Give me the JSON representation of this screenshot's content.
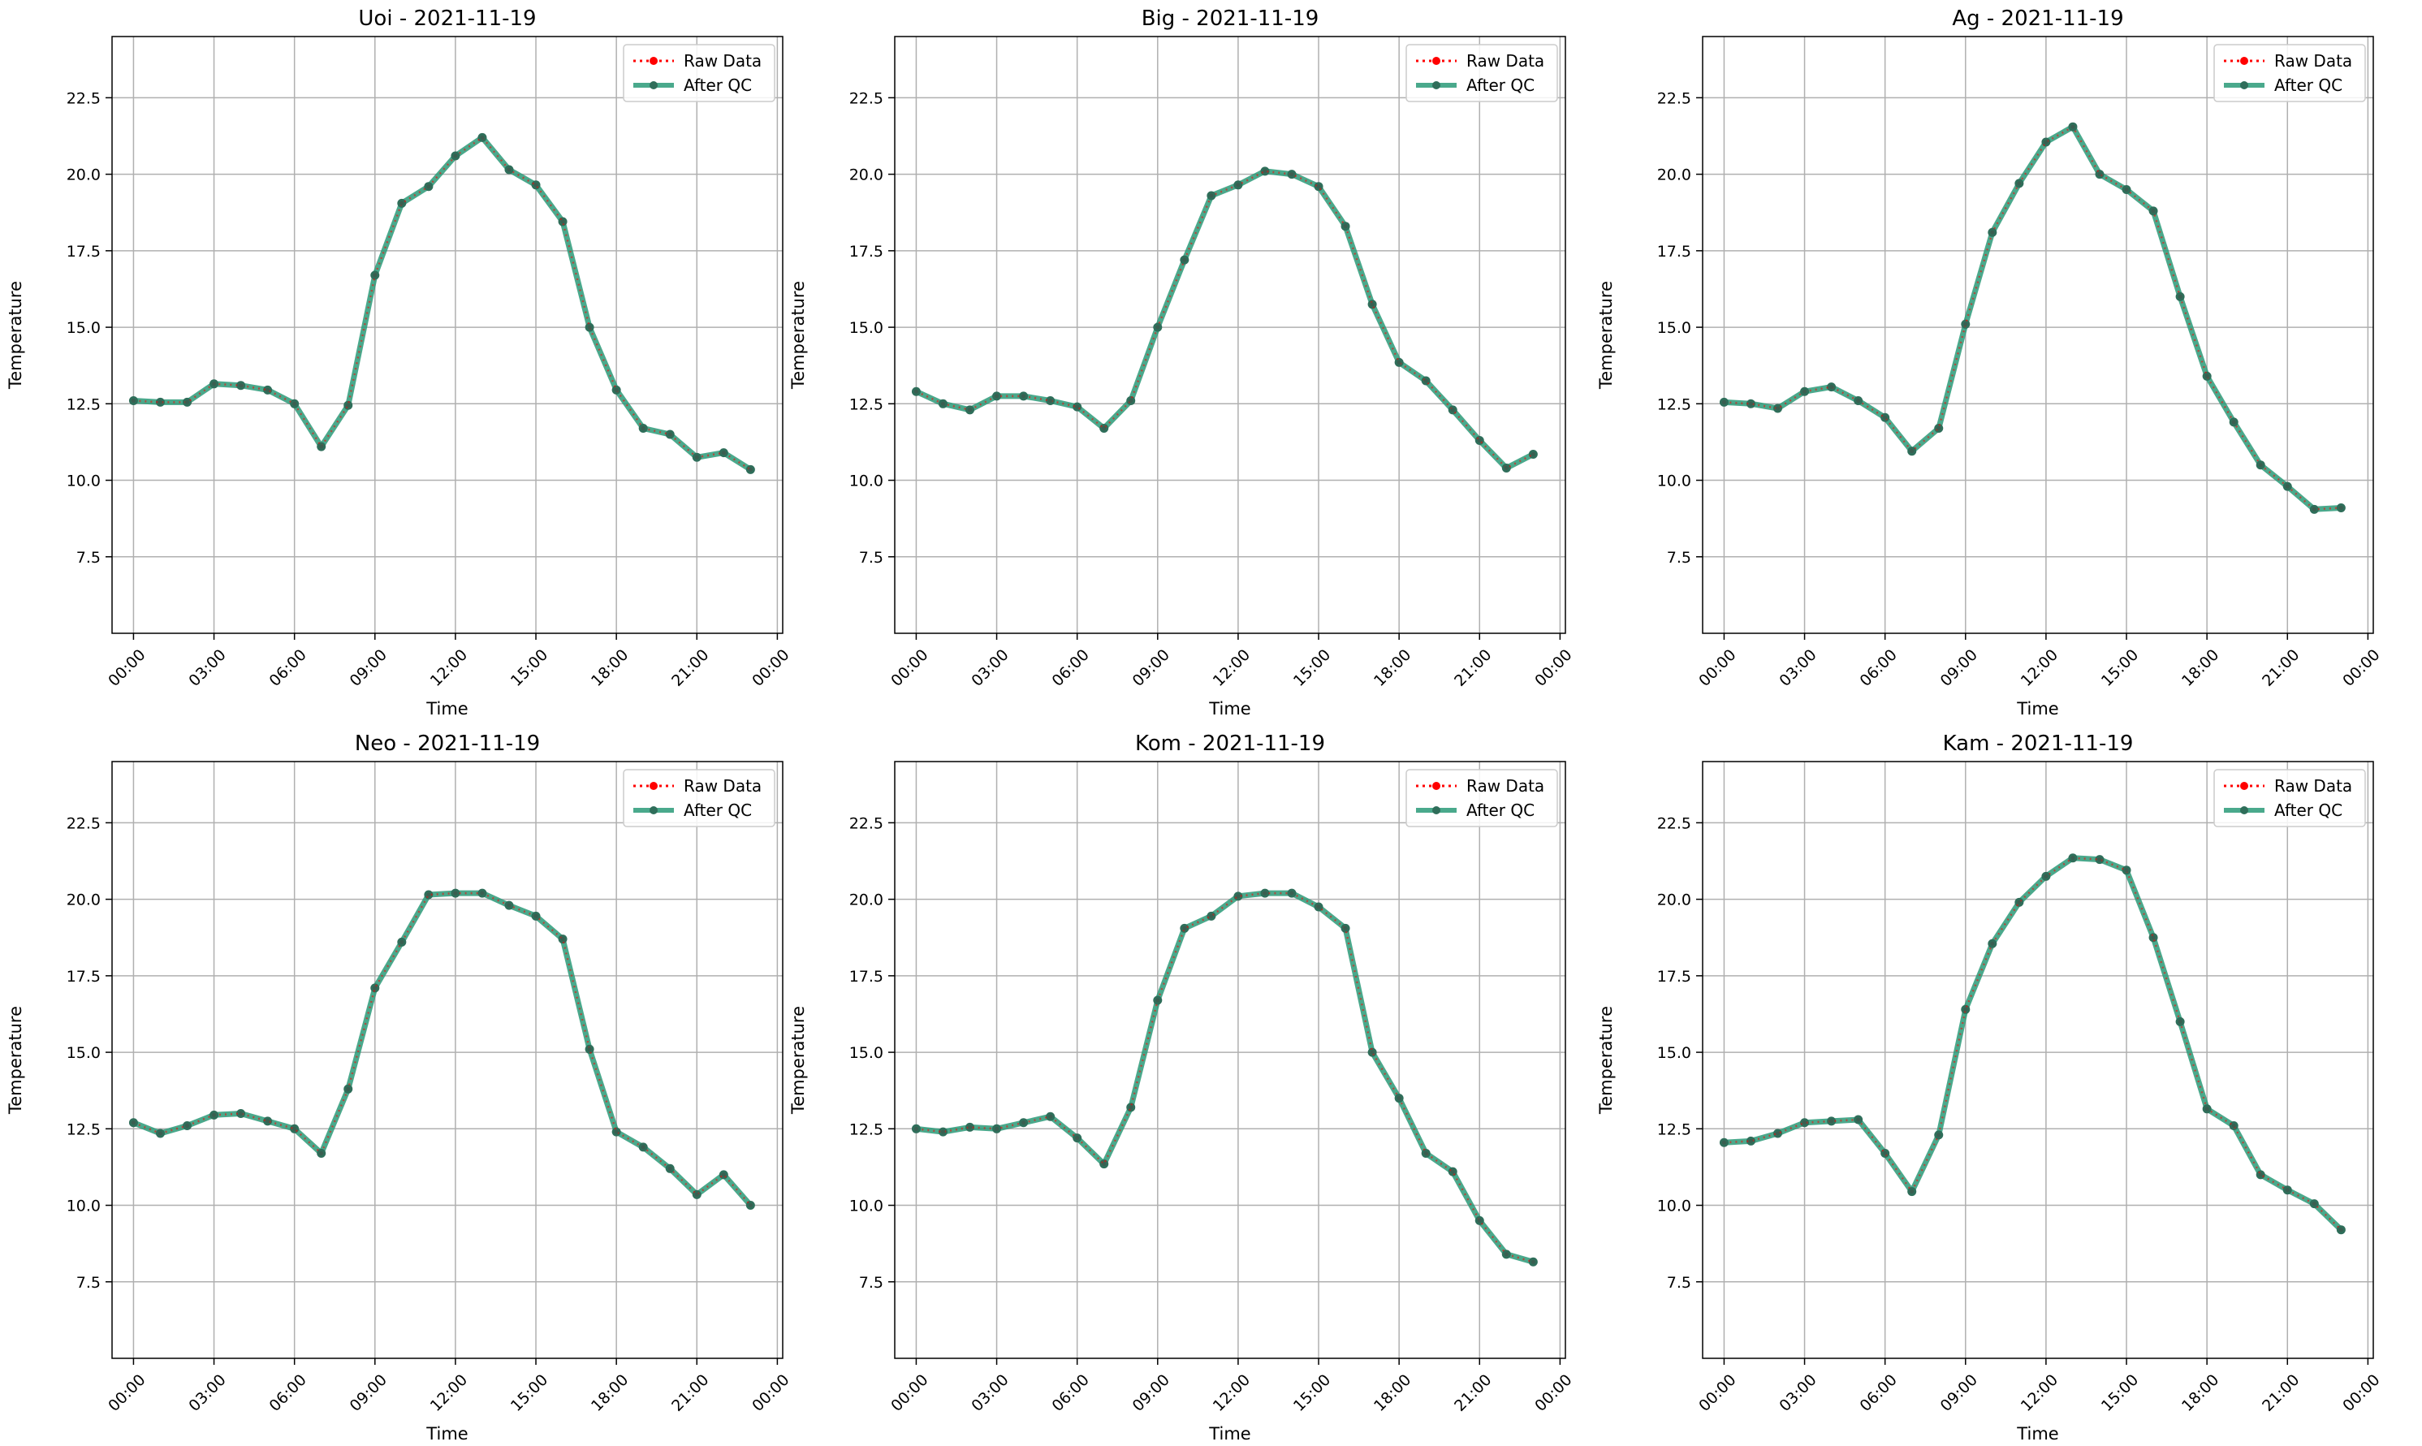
{
  "legend": {
    "raw_label": "Raw Data",
    "qc_label": "After QC",
    "placement": "upper-right"
  },
  "colors": {
    "raw": "#ff0000",
    "qc": "#2a9a78",
    "qc_marker": "#2f6e5a",
    "grid": "#b0b0b0"
  },
  "chart_data": [
    {
      "type": "line",
      "title": "Uoi - 2021-11-19",
      "xlabel": "Time",
      "ylabel": "Temperature",
      "ylim": [
        5.0,
        24.5
      ],
      "yticks": [
        "7.5",
        "10.0",
        "12.5",
        "15.0",
        "17.5",
        "20.0",
        "22.5"
      ],
      "xticks": [
        "00:00",
        "03:00",
        "06:00",
        "09:00",
        "12:00",
        "15:00",
        "18:00",
        "21:00",
        "00:00"
      ],
      "grid": true,
      "x_hours": [
        0,
        1,
        2,
        3,
        4,
        5,
        6,
        7,
        8,
        9,
        10,
        11,
        12,
        13,
        14,
        15,
        16,
        17,
        18,
        19,
        20,
        21,
        22,
        23
      ],
      "series": [
        {
          "name": "Raw Data",
          "values": [
            12.6,
            12.55,
            12.55,
            13.15,
            13.1,
            12.95,
            12.5,
            11.1,
            12.45,
            16.7,
            19.05,
            19.6,
            20.6,
            21.2,
            20.15,
            19.65,
            18.45,
            15.0,
            12.95,
            11.7,
            11.5,
            10.75,
            10.9,
            10.35
          ]
        },
        {
          "name": "After QC",
          "values": [
            12.6,
            12.55,
            12.55,
            13.15,
            13.1,
            12.95,
            12.5,
            11.1,
            12.45,
            16.7,
            19.05,
            19.6,
            20.6,
            21.2,
            20.15,
            19.65,
            18.45,
            15.0,
            12.95,
            11.7,
            11.5,
            10.75,
            10.9,
            10.35
          ]
        }
      ]
    },
    {
      "type": "line",
      "title": "Big - 2021-11-19",
      "xlabel": "Time",
      "ylabel": "Temperature",
      "ylim": [
        5.0,
        24.5
      ],
      "yticks": [
        "7.5",
        "10.0",
        "12.5",
        "15.0",
        "17.5",
        "20.0",
        "22.5"
      ],
      "xticks": [
        "00:00",
        "03:00",
        "06:00",
        "09:00",
        "12:00",
        "15:00",
        "18:00",
        "21:00",
        "00:00"
      ],
      "grid": true,
      "x_hours": [
        0,
        1,
        2,
        3,
        4,
        5,
        6,
        7,
        8,
        9,
        10,
        11,
        12,
        13,
        14,
        15,
        16,
        17,
        18,
        19,
        20,
        21,
        22,
        23
      ],
      "series": [
        {
          "name": "Raw Data",
          "values": [
            12.9,
            12.5,
            12.3,
            12.75,
            12.75,
            12.6,
            12.4,
            11.7,
            12.6,
            15.0,
            17.2,
            19.3,
            19.65,
            20.1,
            20.0,
            19.6,
            18.3,
            15.75,
            13.85,
            13.25,
            12.3,
            11.3,
            10.4,
            10.85
          ]
        },
        {
          "name": "After QC",
          "values": [
            12.9,
            12.5,
            12.3,
            12.75,
            12.75,
            12.6,
            12.4,
            11.7,
            12.6,
            15.0,
            17.2,
            19.3,
            19.65,
            20.1,
            20.0,
            19.6,
            18.3,
            15.75,
            13.85,
            13.25,
            12.3,
            11.3,
            10.4,
            10.85
          ]
        }
      ]
    },
    {
      "type": "line",
      "title": "Ag - 2021-11-19",
      "xlabel": "Time",
      "ylabel": "Temperature",
      "ylim": [
        5.0,
        24.5
      ],
      "yticks": [
        "7.5",
        "10.0",
        "12.5",
        "15.0",
        "17.5",
        "20.0",
        "22.5"
      ],
      "xticks": [
        "00:00",
        "03:00",
        "06:00",
        "09:00",
        "12:00",
        "15:00",
        "18:00",
        "21:00",
        "00:00"
      ],
      "grid": true,
      "x_hours": [
        0,
        1,
        2,
        3,
        4,
        5,
        6,
        7,
        8,
        9,
        10,
        11,
        12,
        13,
        14,
        15,
        16,
        17,
        18,
        19,
        20,
        21,
        22,
        23
      ],
      "series": [
        {
          "name": "Raw Data",
          "values": [
            12.55,
            12.5,
            12.35,
            12.9,
            13.05,
            12.6,
            12.05,
            10.95,
            11.7,
            15.1,
            18.1,
            19.7,
            21.05,
            21.55,
            20.0,
            19.5,
            18.8,
            16.0,
            13.4,
            11.9,
            10.5,
            9.8,
            9.05,
            9.1
          ]
        },
        {
          "name": "After QC",
          "values": [
            12.55,
            12.5,
            12.35,
            12.9,
            13.05,
            12.6,
            12.05,
            10.95,
            11.7,
            15.1,
            18.1,
            19.7,
            21.05,
            21.55,
            20.0,
            19.5,
            18.8,
            16.0,
            13.4,
            11.9,
            10.5,
            9.8,
            9.05,
            9.1
          ]
        }
      ]
    },
    {
      "type": "line",
      "title": "Neo - 2021-11-19",
      "xlabel": "Time",
      "ylabel": "Temperature",
      "ylim": [
        5.0,
        24.5
      ],
      "yticks": [
        "7.5",
        "10.0",
        "12.5",
        "15.0",
        "17.5",
        "20.0",
        "22.5"
      ],
      "xticks": [
        "00:00",
        "03:00",
        "06:00",
        "09:00",
        "12:00",
        "15:00",
        "18:00",
        "21:00",
        "00:00"
      ],
      "grid": true,
      "x_hours": [
        0,
        1,
        2,
        3,
        4,
        5,
        6,
        7,
        8,
        9,
        10,
        11,
        12,
        13,
        14,
        15,
        16,
        17,
        18,
        19,
        20,
        21,
        22,
        23
      ],
      "series": [
        {
          "name": "Raw Data",
          "values": [
            12.7,
            12.35,
            12.6,
            12.95,
            13.0,
            12.75,
            12.5,
            11.7,
            13.8,
            17.1,
            18.6,
            20.15,
            20.2,
            20.2,
            19.8,
            19.45,
            18.7,
            15.1,
            12.4,
            11.9,
            11.2,
            10.35,
            11.0,
            10.0
          ]
        },
        {
          "name": "After QC",
          "values": [
            12.7,
            12.35,
            12.6,
            12.95,
            13.0,
            12.75,
            12.5,
            11.7,
            13.8,
            17.1,
            18.6,
            20.15,
            20.2,
            20.2,
            19.8,
            19.45,
            18.7,
            15.1,
            12.4,
            11.9,
            11.2,
            10.35,
            11.0,
            10.0
          ]
        }
      ]
    },
    {
      "type": "line",
      "title": "Kom - 2021-11-19",
      "xlabel": "Time",
      "ylabel": "Temperature",
      "ylim": [
        5.0,
        24.5
      ],
      "yticks": [
        "7.5",
        "10.0",
        "12.5",
        "15.0",
        "17.5",
        "20.0",
        "22.5"
      ],
      "xticks": [
        "00:00",
        "03:00",
        "06:00",
        "09:00",
        "12:00",
        "15:00",
        "18:00",
        "21:00",
        "00:00"
      ],
      "grid": true,
      "x_hours": [
        0,
        1,
        2,
        3,
        4,
        5,
        6,
        7,
        8,
        9,
        10,
        11,
        12,
        13,
        14,
        15,
        16,
        17,
        18,
        19,
        20,
        21,
        22,
        23
      ],
      "series": [
        {
          "name": "Raw Data",
          "values": [
            12.5,
            12.4,
            12.55,
            12.5,
            12.7,
            12.9,
            12.2,
            11.35,
            13.2,
            16.7,
            19.05,
            19.45,
            20.1,
            20.2,
            20.2,
            19.75,
            19.05,
            15.0,
            13.5,
            11.7,
            11.1,
            9.5,
            8.4,
            8.15
          ]
        },
        {
          "name": "After QC",
          "values": [
            12.5,
            12.4,
            12.55,
            12.5,
            12.7,
            12.9,
            12.2,
            11.35,
            13.2,
            16.7,
            19.05,
            19.45,
            20.1,
            20.2,
            20.2,
            19.75,
            19.05,
            15.0,
            13.5,
            11.7,
            11.1,
            9.5,
            8.4,
            8.15
          ]
        }
      ]
    },
    {
      "type": "line",
      "title": "Kam - 2021-11-19",
      "xlabel": "Time",
      "ylabel": "Temperature",
      "ylim": [
        5.0,
        24.5
      ],
      "yticks": [
        "7.5",
        "10.0",
        "12.5",
        "15.0",
        "17.5",
        "20.0",
        "22.5"
      ],
      "xticks": [
        "00:00",
        "03:00",
        "06:00",
        "09:00",
        "12:00",
        "15:00",
        "18:00",
        "21:00",
        "00:00"
      ],
      "grid": true,
      "x_hours": [
        0,
        1,
        2,
        3,
        4,
        5,
        6,
        7,
        8,
        9,
        10,
        11,
        12,
        13,
        14,
        15,
        16,
        17,
        18,
        19,
        20,
        21,
        22,
        23
      ],
      "series": [
        {
          "name": "Raw Data",
          "values": [
            12.05,
            12.1,
            12.35,
            12.7,
            12.75,
            12.8,
            11.7,
            10.45,
            12.3,
            16.4,
            18.55,
            19.9,
            20.75,
            21.35,
            21.3,
            20.95,
            18.75,
            16.0,
            13.15,
            12.6,
            11.0,
            10.5,
            10.05,
            9.2
          ]
        },
        {
          "name": "After QC",
          "values": [
            12.05,
            12.1,
            12.35,
            12.7,
            12.75,
            12.8,
            11.7,
            10.45,
            12.3,
            16.4,
            18.55,
            19.9,
            20.75,
            21.35,
            21.3,
            20.95,
            18.75,
            16.0,
            13.15,
            12.6,
            11.0,
            10.5,
            10.05,
            9.2
          ]
        }
      ]
    }
  ]
}
